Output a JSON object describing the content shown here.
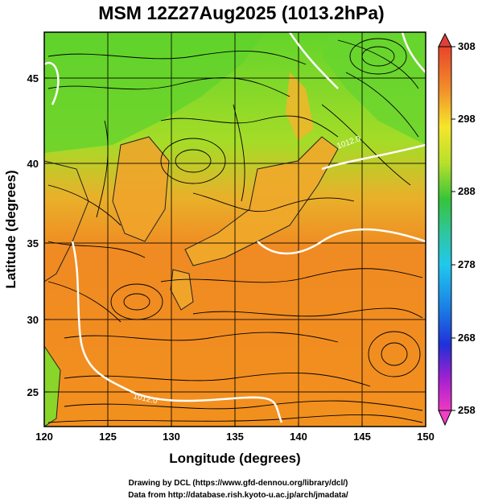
{
  "title": "MSM 12Z27Aug2025 (1013.2hPa)",
  "xlabel": "Longitude (degrees)",
  "ylabel": "Latitude  (degrees)",
  "x_ticks": [
    "120",
    "125",
    "130",
    "135",
    "140",
    "145",
    "150"
  ],
  "y_ticks": [
    "25",
    "30",
    "35",
    "40",
    "45"
  ],
  "colorbar_ticks": [
    "308",
    "298",
    "288",
    "278",
    "268",
    "258"
  ],
  "contour_labels": [
    "1012.0",
    "1012.0"
  ],
  "credit_line1": "Drawing by DCL (https://www.gfd-dennou.org/library/dcl/)",
  "credit_line2": "Data from http://database.rish.kyoto-u.ac.jp/arch/jmadata/",
  "colors": {
    "warm": "#f08a1e",
    "mid": "#f5c31c",
    "cool": "#5ad22a",
    "land": "#f2b52a",
    "contour": "#ffffff",
    "stream": "#000000"
  },
  "chart_data": {
    "type": "heatmap",
    "xlim": [
      120,
      150
    ],
    "ylim": [
      22.5,
      47.6
    ],
    "colorbar_range": [
      258,
      308
    ],
    "x_ticks": [
      120,
      125,
      130,
      135,
      140,
      145,
      150
    ],
    "y_ticks": [
      25,
      30,
      35,
      40,
      45
    ],
    "grid": true
  }
}
